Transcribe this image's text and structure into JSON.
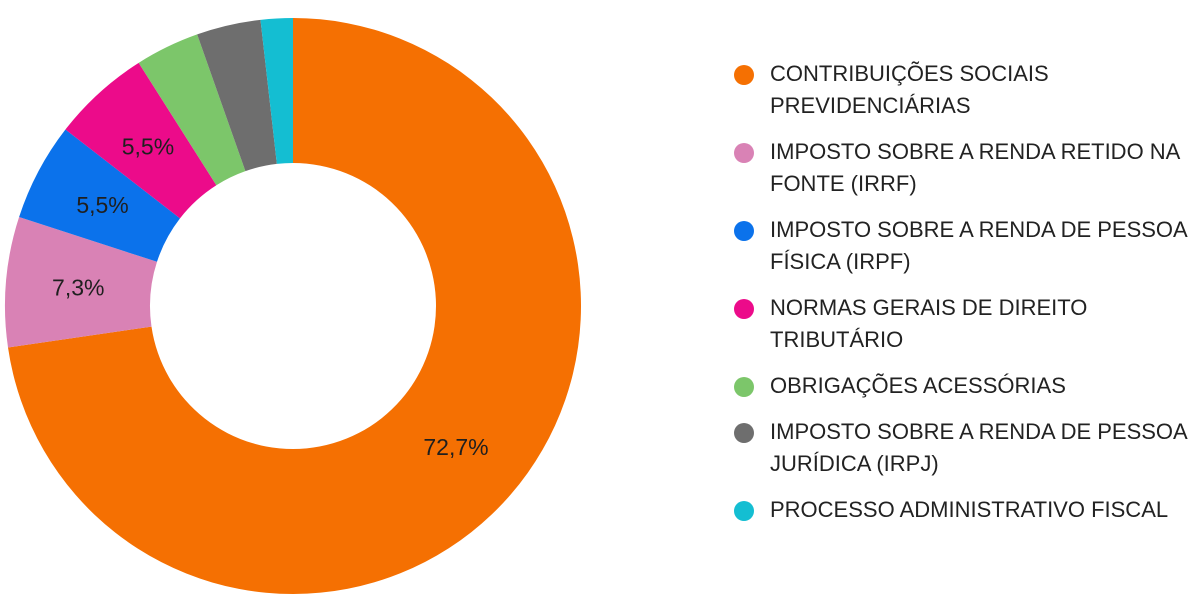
{
  "chart_data": {
    "type": "pie",
    "donut": true,
    "legend_position": "right",
    "slices": [
      {
        "label": "CONTRIBUIÇÕES SOCIAIS PREVIDENCIÁRIAS",
        "value": 72.7,
        "value_label": "72,7%",
        "color": "#F57002"
      },
      {
        "label": "IMPOSTO SOBRE A RENDA RETIDO NA FONTE (IRRF)",
        "value": 7.3,
        "value_label": "7,3%",
        "color": "#D982B5"
      },
      {
        "label": "IMPOSTO SOBRE A RENDA DE PESSOA FÍSICA (IRPF)",
        "value": 5.5,
        "value_label": "5,5%",
        "color": "#0B72EB"
      },
      {
        "label": "NORMAS GERAIS DE DIREITO TRIBUTÁRIO",
        "value": 5.5,
        "value_label": "5,5%",
        "color": "#EC0B8A"
      },
      {
        "label": "OBRIGAÇÕES ACESSÓRIAS",
        "value": 3.6,
        "value_label": "",
        "color": "#7CC66A"
      },
      {
        "label": "IMPOSTO SOBRE A RENDA DE PESSOA JURÍDICA (IRPJ)",
        "value": 3.6,
        "value_label": "",
        "color": "#6E6E6E"
      },
      {
        "label": "PROCESSO ADMINISTRATIVO FISCAL",
        "value": 1.8,
        "value_label": "",
        "color": "#14BED2"
      }
    ]
  }
}
